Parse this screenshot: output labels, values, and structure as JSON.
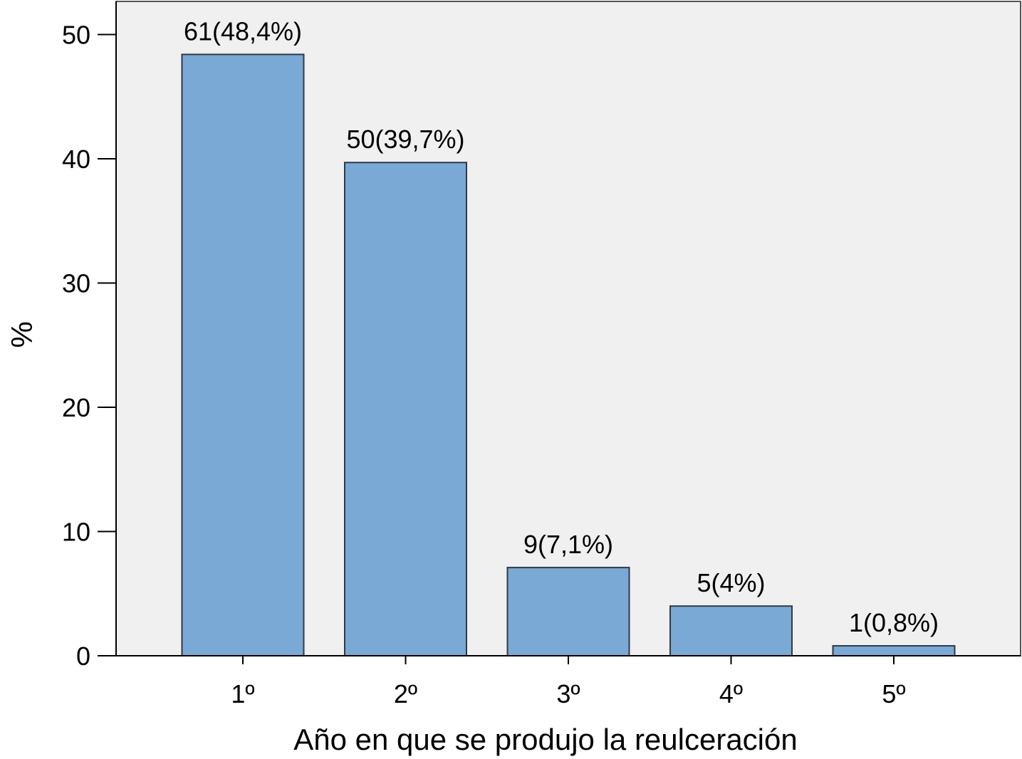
{
  "chart_data": {
    "type": "bar",
    "title": "",
    "xlabel": "Año en que se produjo la reulceración",
    "ylabel": "%",
    "categories": [
      "1º",
      "2º",
      "3º",
      "4º",
      "5º"
    ],
    "values": [
      48.4,
      39.7,
      7.1,
      4.0,
      0.8
    ],
    "data_labels": [
      "61(48,4%)",
      "50(39,7%)",
      "9(7,1%)",
      "5(4%)",
      "1(0,8%)"
    ],
    "ylim": [
      0,
      53
    ],
    "yticks": [
      0,
      10,
      20,
      30,
      40,
      50
    ],
    "ytick_labels": [
      "0",
      "10",
      "20",
      "30",
      "40",
      "50"
    ],
    "grid": false,
    "legend": "none",
    "colors": {
      "bar_fill": "#7ba9d6",
      "bar_stroke": "#2f3a44",
      "plot_background": "#f0f0f0",
      "axis": "#000000"
    }
  }
}
